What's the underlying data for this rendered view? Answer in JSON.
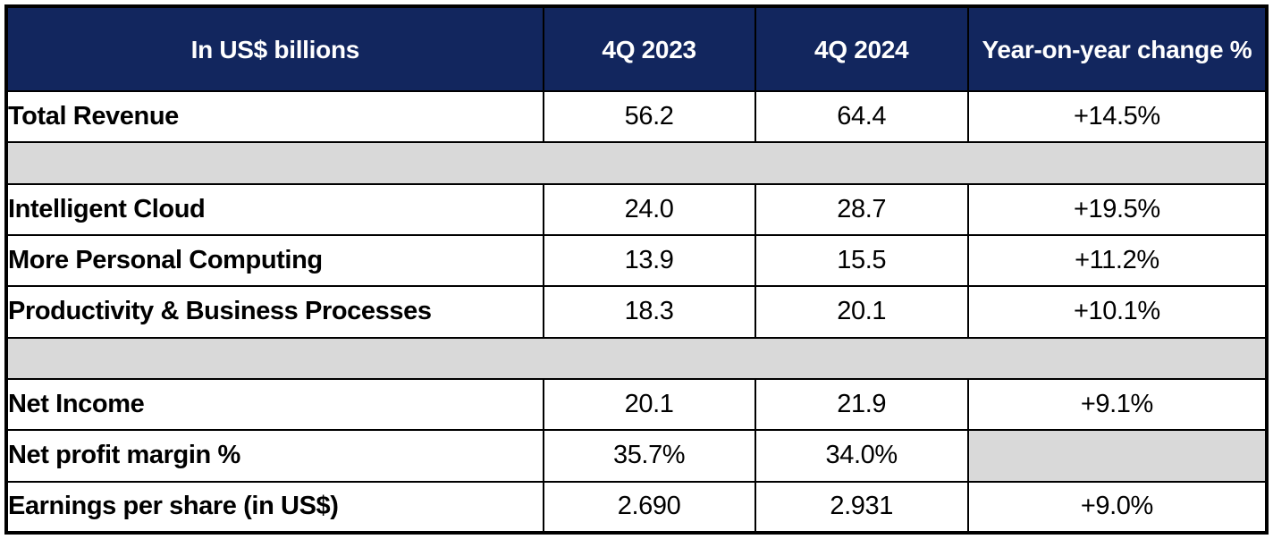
{
  "colors": {
    "header_bg": "#12265E",
    "header_text": "#FFFFFF",
    "spacer_bg": "#D9D9D9",
    "border": "#000000",
    "row_bg": "#FFFFFF",
    "text": "#000000"
  },
  "table": {
    "header": {
      "metric": "In US$ billions",
      "q4_2023": "4Q 2023",
      "q4_2024": "4Q 2024",
      "yoy": "Year-on-year change %"
    },
    "rows": [
      {
        "label": "Total Revenue",
        "q4_2023": "56.2",
        "q4_2024": "64.4",
        "yoy": "+14.5%"
      },
      {
        "label": "Intelligent Cloud",
        "q4_2023": "24.0",
        "q4_2024": "28.7",
        "yoy": "+19.5%"
      },
      {
        "label": "More Personal Computing",
        "q4_2023": "13.9",
        "q4_2024": "15.5",
        "yoy": "+11.2%"
      },
      {
        "label": "Productivity & Business Processes",
        "q4_2023": "18.3",
        "q4_2024": "20.1",
        "yoy": "+10.1%"
      },
      {
        "label": "Net Income",
        "q4_2023": "20.1",
        "q4_2024": "21.9",
        "yoy": "+9.1%"
      },
      {
        "label": "Net profit margin %",
        "q4_2023": "35.7%",
        "q4_2024": "34.0%",
        "yoy": ""
      },
      {
        "label": "Earnings per share (in US$)",
        "q4_2023": "2.690",
        "q4_2024": "2.931",
        "yoy": "+9.0%"
      }
    ]
  },
  "chart_data": {
    "type": "table",
    "title": "In US$ billions",
    "columns": [
      "In US$ billions",
      "4Q 2023",
      "4Q 2024",
      "Year-on-year change %"
    ],
    "rows": [
      [
        "Total Revenue",
        56.2,
        64.4,
        "+14.5%"
      ],
      [
        "Intelligent Cloud",
        24.0,
        28.7,
        "+19.5%"
      ],
      [
        "More Personal Computing",
        13.9,
        15.5,
        "+11.2%"
      ],
      [
        "Productivity & Business Processes",
        18.3,
        20.1,
        "+10.1%"
      ],
      [
        "Net Income",
        20.1,
        21.9,
        "+9.1%"
      ],
      [
        "Net profit margin %",
        "35.7%",
        "34.0%",
        null
      ],
      [
        "Earnings per share (in US$)",
        2.69,
        2.931,
        "+9.0%"
      ]
    ]
  }
}
